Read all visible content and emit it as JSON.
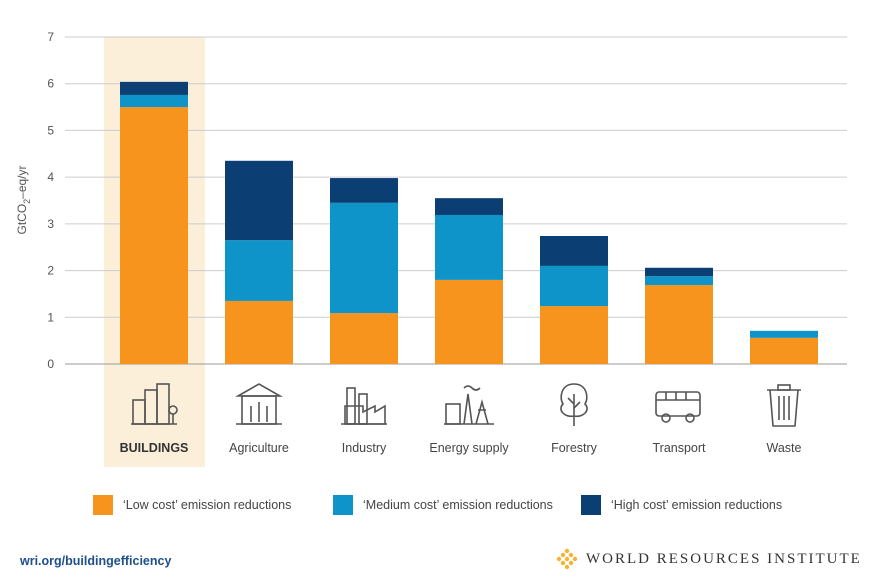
{
  "chart_data": {
    "type": "bar",
    "stacked": true,
    "title": "",
    "ylabel_main": "GtCO",
    "ylabel_sub": "2",
    "ylabel_rest": "–eq/yr",
    "ylim": [
      0,
      7
    ],
    "yticks": [
      0,
      1,
      2,
      3,
      4,
      5,
      6,
      7
    ],
    "grid": true,
    "categories": [
      "BUILDINGS",
      "Agriculture",
      "Industry",
      "Energy supply",
      "Forestry",
      "Transport",
      "Waste"
    ],
    "icons": [
      "buildings-icon",
      "agriculture-icon",
      "industry-icon",
      "energy-supply-icon",
      "forestry-icon",
      "transport-icon",
      "waste-icon"
    ],
    "highlight": "BUILDINGS",
    "series": [
      {
        "name": "‘Low cost’ emission reductions",
        "color": "#F7941D",
        "values": [
          5.5,
          1.35,
          1.09,
          1.8,
          1.24,
          1.69,
          0.56
        ]
      },
      {
        "name": "‘Medium cost’ emission reductions",
        "color": "#0E94C8",
        "values": [
          0.26,
          1.3,
          2.36,
          1.39,
          0.86,
          0.19,
          0.15
        ]
      },
      {
        "name": "‘High cost’ emission reductions",
        "color": "#0B3E73",
        "values": [
          0.28,
          1.7,
          0.53,
          0.36,
          0.64,
          0.18,
          0
        ]
      }
    ],
    "legend_position": "bottom"
  },
  "footer": {
    "url": "wri.org/buildingefficiency",
    "logo_text": "WORLD RESOURCES INSTITUTE"
  }
}
